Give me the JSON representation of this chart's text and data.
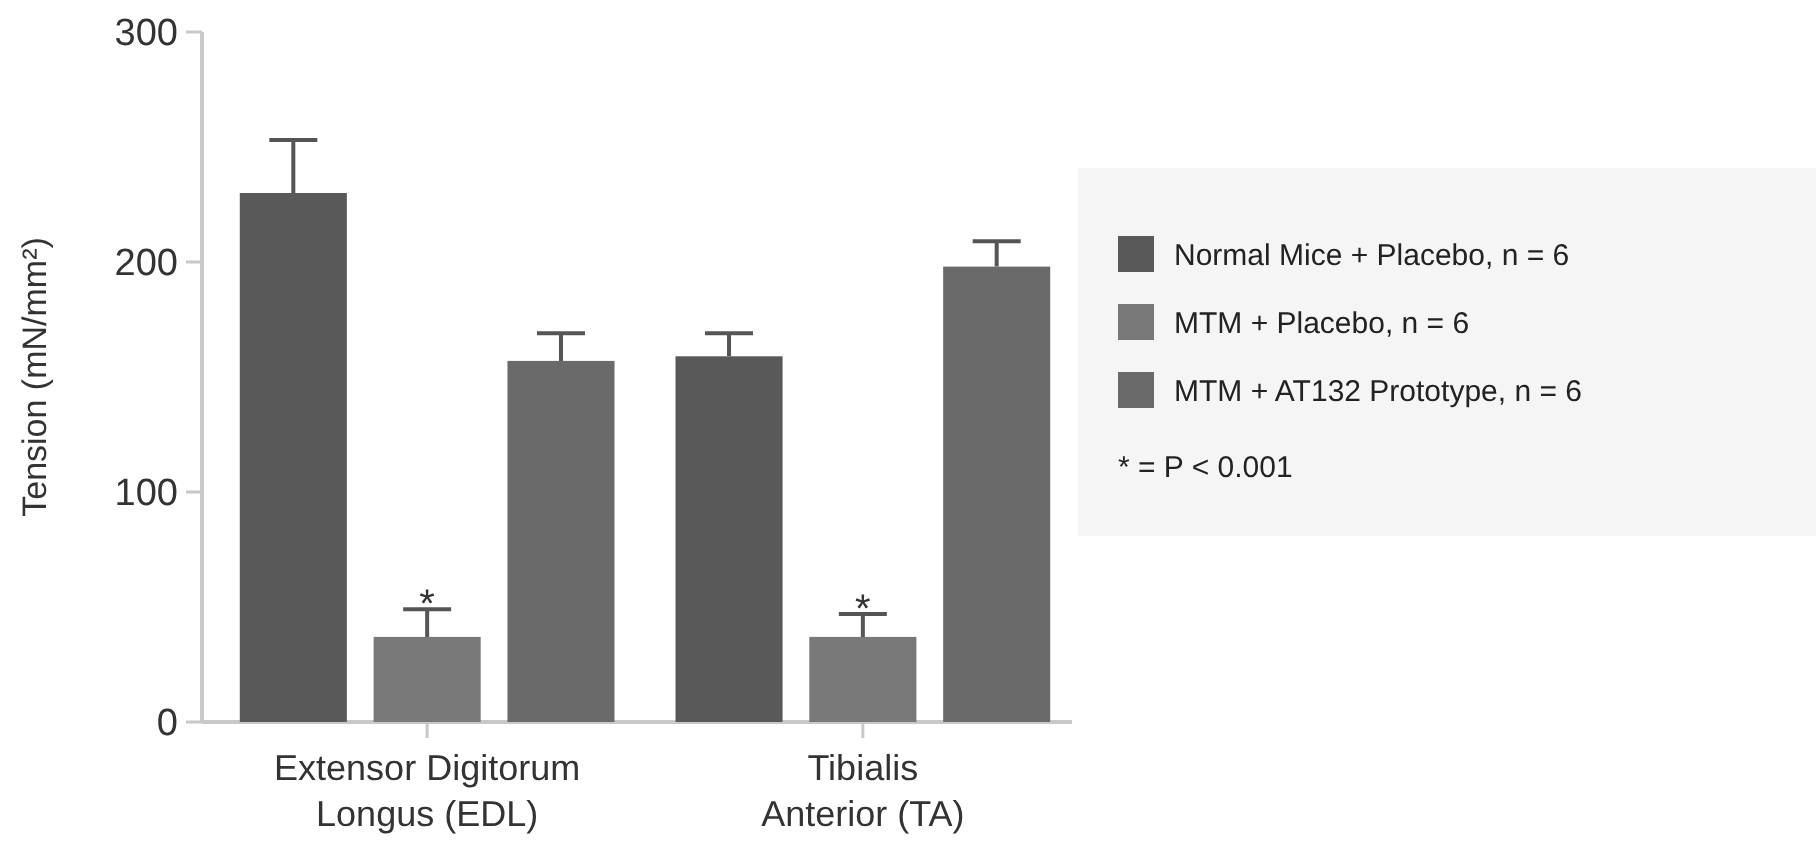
{
  "chart_data": {
    "type": "bar",
    "ylabel": "Tension (mN/mm²)",
    "categories": [
      "Extensor Digitorum Longus (EDL)",
      "Tibialis Anterior (TA)"
    ],
    "series": [
      {
        "name": "Normal Mice + Placebo, n = 6",
        "color": "#595959",
        "values": [
          230,
          159
        ],
        "errors": [
          [
            230,
            253
          ],
          [
            159,
            169
          ]
        ]
      },
      {
        "name": "MTM + Placebo, n = 6",
        "color": "#787878",
        "values": [
          37,
          37
        ],
        "errors": [
          [
            37,
            49
          ],
          [
            37,
            47
          ]
        ]
      },
      {
        "name": "MTM + AT132 Prototype, n = 6",
        "color": "#6a6a6a",
        "values": [
          157,
          198
        ],
        "errors": [
          [
            157,
            169
          ],
          [
            198,
            209
          ]
        ]
      }
    ],
    "ylim": [
      0,
      300
    ],
    "yticks": [
      0,
      100,
      200,
      300
    ],
    "grid": false,
    "legend": "right",
    "annotations": [
      {
        "text": "*",
        "x": "Extensor Digitorum Longus (EDL)",
        "y": 37
      },
      {
        "text": "*",
        "x": "Tibialis Anterior (TA)",
        "y": 37
      },
      "* = P < 0.001"
    ]
  }
}
